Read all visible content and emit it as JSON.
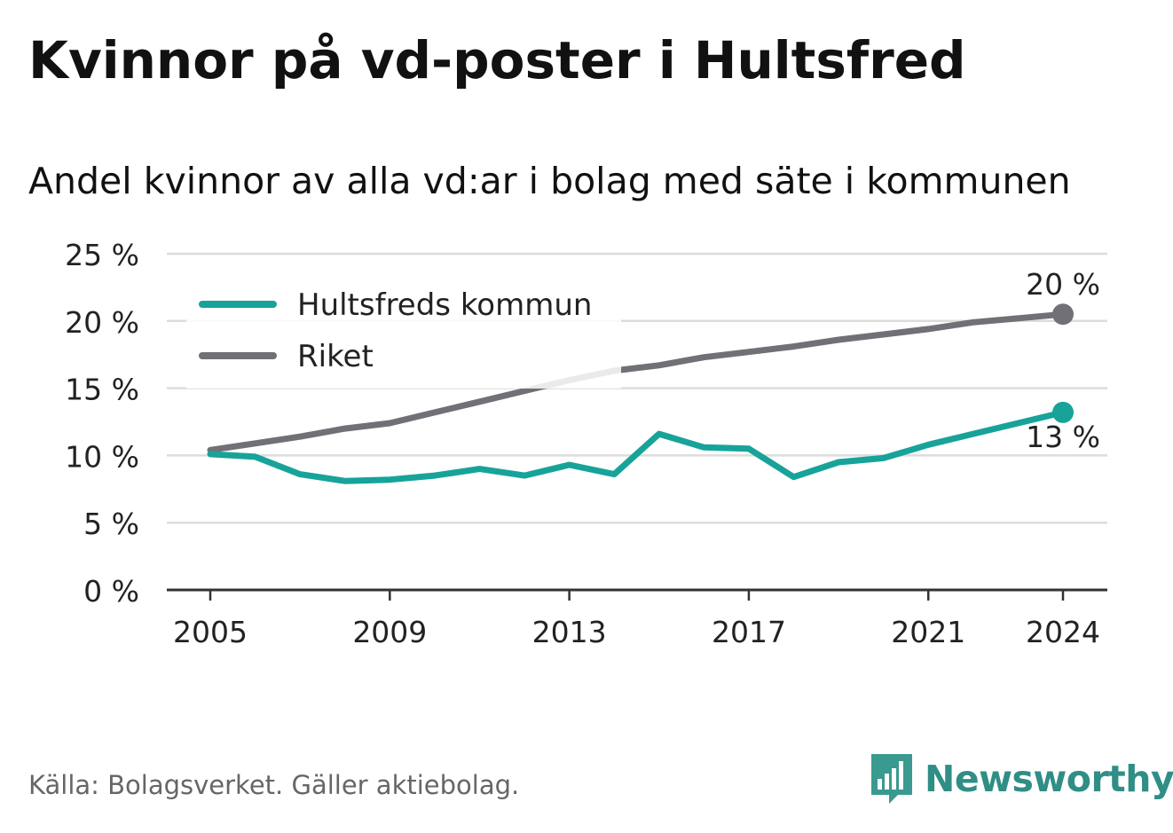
{
  "title": "Kvinnor på vd-poster i Hultsfred",
  "subtitle": "Andel kvinnor av alla vd:ar i bolag med säte i kommunen",
  "source": "Källa: Bolagsverket. Gäller aktiebolag.",
  "brand": {
    "name": "Newsworthy",
    "icon": "newsworthy-logo-icon",
    "color": "#3a9a8f"
  },
  "chart_data": {
    "type": "line",
    "x": [
      2005,
      2006,
      2007,
      2008,
      2009,
      2010,
      2011,
      2012,
      2013,
      2014,
      2015,
      2016,
      2017,
      2018,
      2019,
      2020,
      2021,
      2022,
      2023,
      2024
    ],
    "x_ticks": [
      2005,
      2009,
      2013,
      2017,
      2021,
      2024
    ],
    "y_ticks": [
      0,
      5,
      10,
      15,
      20,
      25
    ],
    "y_tick_labels": [
      "0 %",
      "5 %",
      "10 %",
      "15 %",
      "20 %",
      "25 %"
    ],
    "ylim": [
      0,
      25
    ],
    "xlabel": "",
    "ylabel": "",
    "grid": true,
    "legend_position": "top-left",
    "series": [
      {
        "name": "Hultsfreds kommun",
        "color": "#17a399",
        "values": [
          10.1,
          9.9,
          8.6,
          8.1,
          8.2,
          8.5,
          9.0,
          8.5,
          9.3,
          8.6,
          11.6,
          10.6,
          10.5,
          8.4,
          9.5,
          9.8,
          10.8,
          11.6,
          12.4,
          13.2
        ],
        "end_label": "13 %"
      },
      {
        "name": "Riket",
        "color": "#707076",
        "values": [
          10.4,
          10.9,
          11.4,
          12.0,
          12.4,
          13.2,
          14.0,
          14.8,
          15.6,
          16.3,
          16.7,
          17.3,
          17.7,
          18.1,
          18.6,
          19.0,
          19.4,
          19.9,
          20.2,
          20.5
        ],
        "end_label": "20 %"
      }
    ]
  }
}
